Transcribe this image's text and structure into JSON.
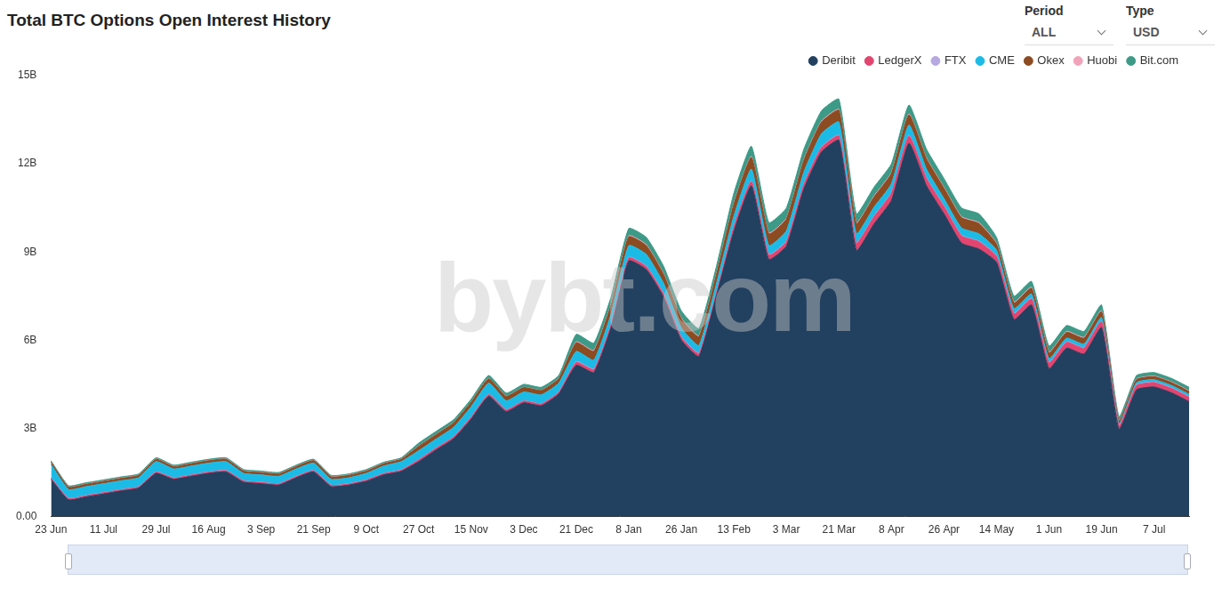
{
  "chart_data": {
    "type": "area",
    "title": "Total BTC Options Open Interest History",
    "controls": [
      {
        "label": "Period",
        "value": "ALL"
      },
      {
        "label": "Type",
        "value": "USD"
      }
    ],
    "watermark": "bybt.com",
    "stacked": true,
    "grid": false,
    "legend": "top",
    "categories": [
      "23 Jun",
      null,
      null,
      "11 Jul",
      null,
      null,
      "29 Jul",
      null,
      null,
      "16 Aug",
      null,
      null,
      "3 Sep",
      null,
      null,
      "21 Sep",
      null,
      null,
      "9 Oct",
      null,
      null,
      "27 Oct",
      null,
      null,
      "15 Nov",
      null,
      null,
      "3 Dec",
      null,
      null,
      "21 Dec",
      null,
      null,
      "8 Jan",
      null,
      null,
      "26 Jan",
      null,
      null,
      "13 Feb",
      null,
      null,
      "3 Mar",
      null,
      null,
      "21 Mar",
      null,
      null,
      "8 Apr",
      null,
      null,
      "26 Apr",
      null,
      null,
      "14 May",
      null,
      null,
      "1 Jun",
      null,
      null,
      "19 Jun",
      null,
      null,
      "7 Jul",
      null,
      null
    ],
    "ylim": [
      0,
      15
    ],
    "yticks": [
      {
        "value": 0,
        "label": "0.00"
      },
      {
        "value": 3,
        "label": "3B"
      },
      {
        "value": 6,
        "label": "6B"
      },
      {
        "value": 9,
        "label": "9B"
      },
      {
        "value": 12,
        "label": "12B"
      },
      {
        "value": 15,
        "label": "15B"
      }
    ],
    "series": [
      {
        "name": "Deribit",
        "color": "#22405f",
        "values": [
          1.27,
          0.57,
          0.67,
          0.77,
          0.87,
          0.97,
          1.47,
          1.27,
          1.37,
          1.47,
          1.52,
          1.17,
          1.12,
          1.07,
          1.32,
          1.52,
          1.02,
          1.07,
          1.2,
          1.42,
          1.54,
          1.87,
          2.27,
          2.65,
          3.32,
          4.09,
          3.57,
          3.87,
          3.77,
          4.17,
          5.15,
          4.9,
          6.45,
          8.7,
          8.4,
          7.45,
          6.0,
          5.45,
          7.5,
          9.7,
          11.25,
          8.75,
          9.2,
          11.15,
          12.4,
          12.8,
          9.05,
          9.95,
          10.75,
          12.7,
          11.25,
          10.3,
          9.3,
          9.1,
          8.65,
          6.7,
          7.2,
          5.03,
          5.73,
          5.53,
          6.43,
          2.97,
          4.31,
          4.41,
          4.21,
          3.91
        ]
      },
      {
        "name": "LedgerX",
        "color": "#e2456f",
        "values": [
          0.04,
          0.04,
          0.04,
          0.04,
          0.04,
          0.04,
          0.04,
          0.04,
          0.04,
          0.04,
          0.04,
          0.04,
          0.04,
          0.04,
          0.04,
          0.04,
          0.04,
          0.04,
          0.04,
          0.04,
          0.04,
          0.06,
          0.06,
          0.06,
          0.06,
          0.06,
          0.06,
          0.06,
          0.06,
          0.06,
          0.1,
          0.1,
          0.1,
          0.1,
          0.1,
          0.1,
          0.1,
          0.1,
          0.1,
          0.15,
          0.15,
          0.15,
          0.15,
          0.15,
          0.15,
          0.15,
          0.25,
          0.25,
          0.25,
          0.25,
          0.25,
          0.25,
          0.25,
          0.25,
          0.2,
          0.2,
          0.2,
          0.2,
          0.2,
          0.2,
          0.2,
          0.12,
          0.15,
          0.15,
          0.15,
          0.15
        ]
      },
      {
        "name": "FTX",
        "color": "#b8a8e0",
        "values": [
          0.01,
          0.01,
          0.01,
          0.01,
          0.01,
          0.01,
          0.01,
          0.01,
          0.01,
          0.01,
          0.01,
          0.01,
          0.01,
          0.01,
          0.01,
          0.01,
          0.01,
          0.01,
          0.01,
          0.01,
          0.01,
          0.01,
          0.01,
          0.01,
          0.01,
          0.01,
          0.01,
          0.01,
          0.01,
          0.01,
          0.02,
          0.02,
          0.02,
          0.02,
          0.02,
          0.02,
          0.02,
          0.02,
          0.02,
          0.02,
          0.02,
          0.02,
          0.02,
          0.02,
          0.02,
          0.02,
          0.02,
          0.02,
          0.02,
          0.02,
          0.02,
          0.02,
          0.02,
          0.02,
          0.02,
          0.02,
          0.02,
          0.02,
          0.02,
          0.02,
          0.02,
          0.02,
          0.02,
          0.02,
          0.02,
          0.02
        ]
      },
      {
        "name": "CME",
        "color": "#1cbbe6",
        "values": [
          0.45,
          0.3,
          0.3,
          0.3,
          0.3,
          0.3,
          0.35,
          0.3,
          0.3,
          0.3,
          0.3,
          0.25,
          0.25,
          0.25,
          0.25,
          0.25,
          0.2,
          0.2,
          0.22,
          0.25,
          0.28,
          0.3,
          0.3,
          0.32,
          0.35,
          0.38,
          0.3,
          0.3,
          0.3,
          0.3,
          0.35,
          0.3,
          0.35,
          0.4,
          0.4,
          0.35,
          0.3,
          0.25,
          0.3,
          0.35,
          0.4,
          0.3,
          0.35,
          0.4,
          0.45,
          0.45,
          0.3,
          0.3,
          0.3,
          0.35,
          0.3,
          0.25,
          0.25,
          0.25,
          0.2,
          0.15,
          0.15,
          0.12,
          0.12,
          0.12,
          0.12,
          0.05,
          0.08,
          0.08,
          0.08,
          0.08
        ]
      },
      {
        "name": "Okex",
        "color": "#8c4b20",
        "values": [
          0.08,
          0.08,
          0.08,
          0.08,
          0.08,
          0.08,
          0.08,
          0.08,
          0.08,
          0.08,
          0.08,
          0.08,
          0.08,
          0.08,
          0.08,
          0.08,
          0.08,
          0.08,
          0.08,
          0.08,
          0.08,
          0.15,
          0.15,
          0.15,
          0.15,
          0.15,
          0.15,
          0.15,
          0.15,
          0.15,
          0.3,
          0.3,
          0.3,
          0.3,
          0.3,
          0.3,
          0.3,
          0.3,
          0.3,
          0.4,
          0.4,
          0.4,
          0.4,
          0.4,
          0.4,
          0.4,
          0.35,
          0.35,
          0.35,
          0.35,
          0.35,
          0.35,
          0.35,
          0.35,
          0.2,
          0.2,
          0.2,
          0.2,
          0.2,
          0.2,
          0.2,
          0.1,
          0.1,
          0.1,
          0.1,
          0.1
        ]
      },
      {
        "name": "Huobi",
        "color": "#f1a3ba",
        "values": [
          0.01,
          0.01,
          0.01,
          0.01,
          0.01,
          0.01,
          0.01,
          0.01,
          0.01,
          0.01,
          0.01,
          0.01,
          0.01,
          0.01,
          0.01,
          0.01,
          0.01,
          0.01,
          0.01,
          0.01,
          0.01,
          0.01,
          0.01,
          0.01,
          0.01,
          0.01,
          0.01,
          0.01,
          0.01,
          0.01,
          0.03,
          0.03,
          0.03,
          0.03,
          0.03,
          0.03,
          0.03,
          0.03,
          0.03,
          0.03,
          0.03,
          0.03,
          0.03,
          0.03,
          0.03,
          0.03,
          0.03,
          0.03,
          0.03,
          0.03,
          0.03,
          0.03,
          0.03,
          0.03,
          0.03,
          0.03,
          0.03,
          0.03,
          0.03,
          0.03,
          0.03,
          0.02,
          0.02,
          0.02,
          0.02,
          0.02
        ]
      },
      {
        "name": "Bit.com",
        "color": "#3d9a87",
        "values": [
          0.04,
          0.04,
          0.04,
          0.04,
          0.04,
          0.04,
          0.04,
          0.04,
          0.04,
          0.04,
          0.04,
          0.04,
          0.04,
          0.04,
          0.04,
          0.04,
          0.04,
          0.04,
          0.04,
          0.04,
          0.04,
          0.1,
          0.1,
          0.1,
          0.1,
          0.1,
          0.1,
          0.1,
          0.1,
          0.1,
          0.25,
          0.25,
          0.25,
          0.25,
          0.25,
          0.25,
          0.25,
          0.25,
          0.25,
          0.35,
          0.35,
          0.35,
          0.35,
          0.35,
          0.35,
          0.35,
          0.3,
          0.3,
          0.3,
          0.3,
          0.3,
          0.3,
          0.3,
          0.3,
          0.2,
          0.2,
          0.2,
          0.2,
          0.2,
          0.2,
          0.2,
          0.12,
          0.12,
          0.12,
          0.12,
          0.12
        ]
      }
    ]
  }
}
